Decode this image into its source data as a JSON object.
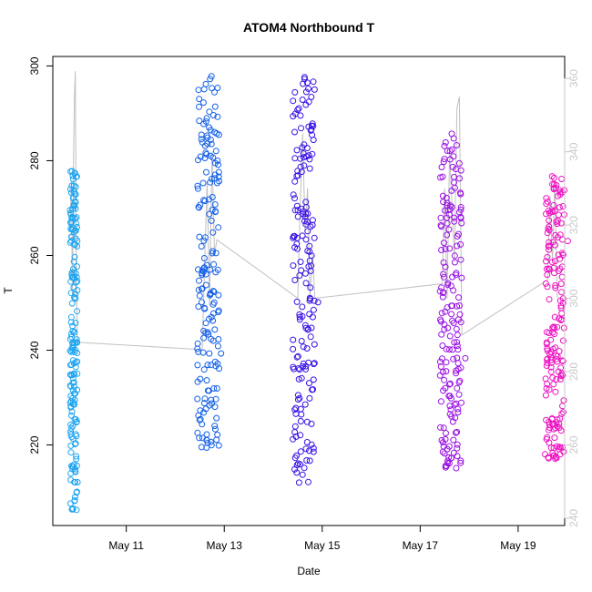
{
  "chart_data": {
    "type": "scatter",
    "title": "ATOM4 Northbound T",
    "xlabel": "Date",
    "ylabel": "T",
    "x_axis": {
      "ticks": [
        {
          "day": 11,
          "label": "May 11"
        },
        {
          "day": 13,
          "label": "May 13"
        },
        {
          "day": 15,
          "label": "May 15"
        },
        {
          "day": 17,
          "label": "May 17"
        },
        {
          "day": 19,
          "label": "May 19"
        }
      ],
      "range": [
        "May 9.5",
        "May 19.95"
      ]
    },
    "y_left": {
      "range": [
        203,
        302
      ],
      "ticks": [
        220,
        240,
        260,
        280,
        300
      ]
    },
    "y_right": {
      "range": [
        238,
        366
      ],
      "ticks": [
        240,
        260,
        280,
        300,
        320,
        340,
        360
      ],
      "color": "#c8c8c8"
    },
    "grid": false,
    "series": [
      {
        "color": "#1ea5f0",
        "x_range": [
          "May 9.85",
          "May 10.0"
        ],
        "y_range": [
          206,
          278
        ],
        "description": "clusters of samples on May 10"
      },
      {
        "color": "#1460e8",
        "x_range": [
          "May 12.45",
          "May 12.9"
        ],
        "y_range": [
          219,
          298
        ],
        "description": "clusters of samples on May 12-13"
      },
      {
        "color": "#3a12e6",
        "x_range": [
          "May 14.4",
          "May 14.85"
        ],
        "y_range": [
          212,
          300
        ],
        "description": "clusters of samples on May 14-15"
      },
      {
        "color": "#9a12e4",
        "x_range": [
          "May 17.4",
          "May 17.85"
        ],
        "y_range": [
          215,
          286
        ],
        "description": "clusters of samples on May 17-18"
      },
      {
        "color": "#ee12c2",
        "x_range": [
          "May 19.55",
          "May 19.95"
        ],
        "y_range": [
          217,
          277
        ],
        "description": "clusters of samples on May 19-20"
      }
    ],
    "secondary_line": {
      "color": "#c0c0c0",
      "axis": "right",
      "points": [
        {
          "x": 9.85,
          "y": 318
        },
        {
          "x": 9.88,
          "y": 332
        },
        {
          "x": 9.9,
          "y": 300
        },
        {
          "x": 9.92,
          "y": 335
        },
        {
          "x": 9.94,
          "y": 355
        },
        {
          "x": 9.96,
          "y": 362
        },
        {
          "x": 9.98,
          "y": 310
        },
        {
          "x": 10.0,
          "y": 288
        },
        {
          "x": 12.55,
          "y": 286
        },
        {
          "x": 12.6,
          "y": 310
        },
        {
          "x": 12.65,
          "y": 332
        },
        {
          "x": 12.7,
          "y": 298
        },
        {
          "x": 12.75,
          "y": 340
        },
        {
          "x": 12.8,
          "y": 312
        },
        {
          "x": 12.85,
          "y": 316
        },
        {
          "x": 14.5,
          "y": 300
        },
        {
          "x": 14.55,
          "y": 325
        },
        {
          "x": 14.6,
          "y": 345
        },
        {
          "x": 14.65,
          "y": 318
        },
        {
          "x": 14.7,
          "y": 330
        },
        {
          "x": 14.75,
          "y": 300
        },
        {
          "x": 14.8,
          "y": 312
        },
        {
          "x": 14.85,
          "y": 300
        },
        {
          "x": 17.45,
          "y": 304
        },
        {
          "x": 17.5,
          "y": 330
        },
        {
          "x": 17.55,
          "y": 300
        },
        {
          "x": 17.6,
          "y": 340
        },
        {
          "x": 17.7,
          "y": 310
        },
        {
          "x": 17.75,
          "y": 352
        },
        {
          "x": 17.8,
          "y": 355
        },
        {
          "x": 17.85,
          "y": 290
        },
        {
          "x": 19.6,
          "y": 305
        },
        {
          "x": 19.65,
          "y": 328
        },
        {
          "x": 19.7,
          "y": 310
        },
        {
          "x": 19.75,
          "y": 332
        },
        {
          "x": 19.8,
          "y": 300
        }
      ]
    }
  }
}
